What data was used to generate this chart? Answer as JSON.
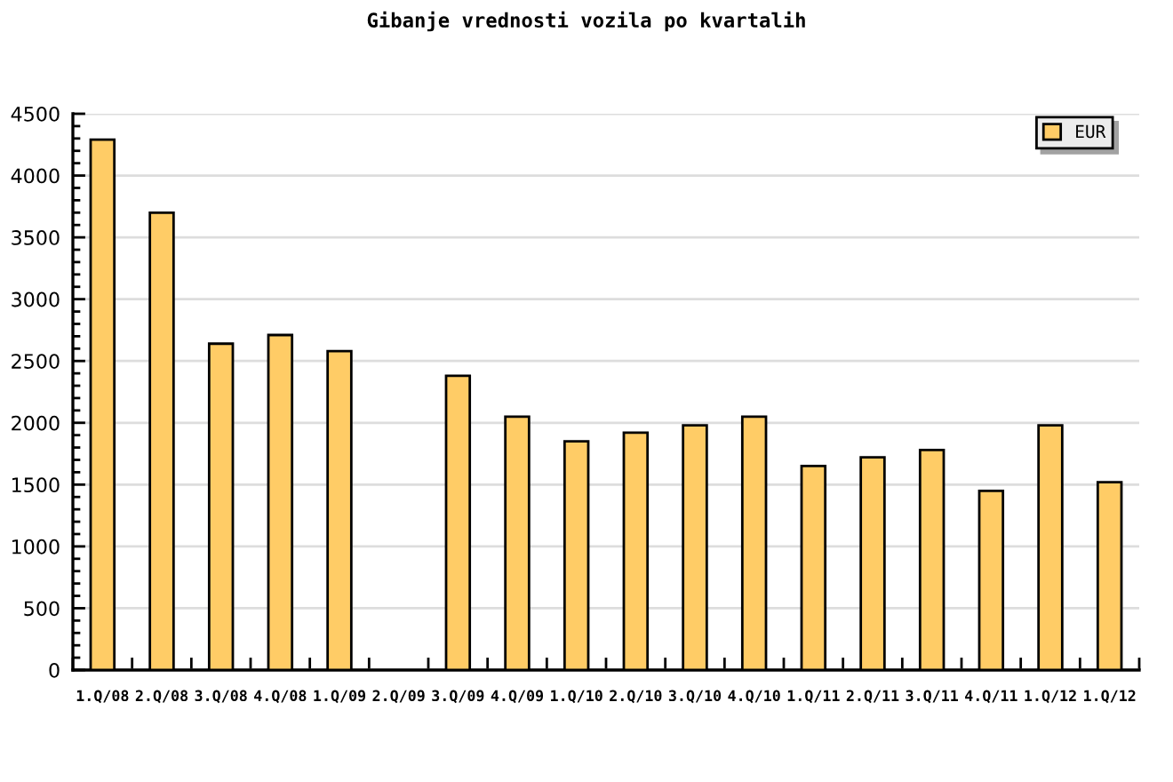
{
  "chart_data": {
    "type": "bar",
    "title": "Gibanje vrednosti vozila po kvartalih",
    "categories": [
      "1.Q/08",
      "2.Q/08",
      "3.Q/08",
      "4.Q/08",
      "1.Q/09",
      "2.Q/09",
      "3.Q/09",
      "4.Q/09",
      "1.Q/10",
      "2.Q/10",
      "3.Q/10",
      "4.Q/10",
      "1.Q/11",
      "2.Q/11",
      "3.Q/11",
      "4.Q/11",
      "1.Q/12",
      "1.Q/12"
    ],
    "series": [
      {
        "name": "EUR",
        "color": "#ffcc66",
        "values": [
          4290,
          3700,
          2640,
          2710,
          2580,
          null,
          2380,
          2050,
          1850,
          1920,
          1980,
          2050,
          1650,
          1720,
          1780,
          1450,
          1980,
          1520
        ]
      }
    ],
    "ylim": [
      0,
      4500
    ],
    "yticks": [
      0,
      500,
      1000,
      1500,
      2000,
      2500,
      3000,
      3500,
      4000,
      4500
    ],
    "grid": "y",
    "legend": "top right"
  }
}
